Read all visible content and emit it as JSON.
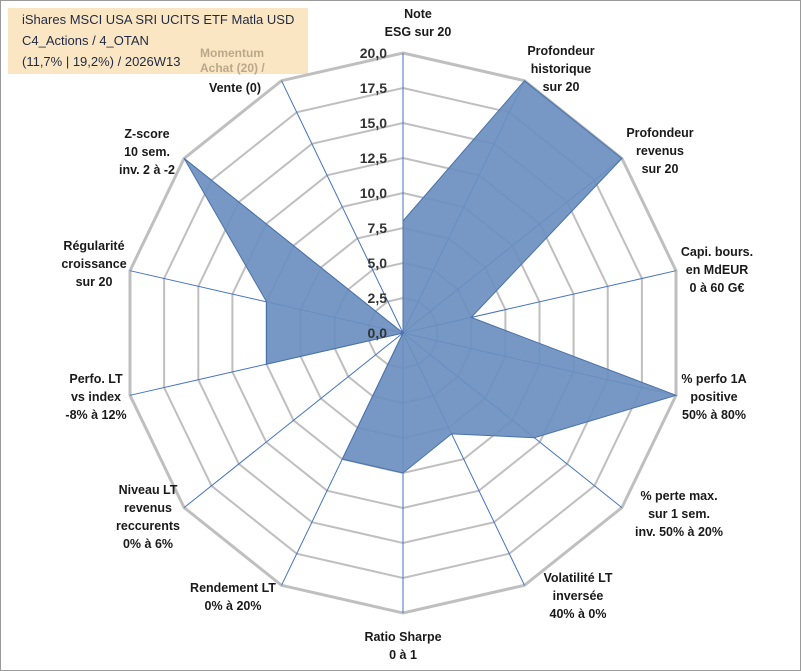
{
  "title": {
    "line1": "iShares MSCI USA SRI UCITS ETF Matla USD",
    "line2": "C4_Actions / 4_OTAN",
    "line3": "(11,7% | 19,2%) / 2026W13",
    "momentum_1": "Momentum",
    "momentum_2": "Achat (20) /",
    "momentum_3": "Vente (0)"
  },
  "chart_data": {
    "type": "radar",
    "rmax": 20,
    "ticks": [
      0,
      2.5,
      5,
      7.5,
      10,
      12.5,
      15,
      17.5,
      20
    ],
    "tick_labels": [
      "0,0",
      "2,5",
      "5,0",
      "7,5",
      "10,0",
      "12,5",
      "15,0",
      "17,5",
      "20,0"
    ],
    "axes": [
      {
        "lines": [
          "Note",
          "ESG sur 20"
        ],
        "value": 8
      },
      {
        "lines": [
          "Profondeur",
          "historique",
          "sur 20"
        ],
        "value": 20
      },
      {
        "lines": [
          "Profondeur",
          "revenus",
          "sur 20"
        ],
        "value": 20
      },
      {
        "lines": [
          "Capi. bours.",
          "en MdEUR",
          "0 à 60 G€"
        ],
        "value": 5
      },
      {
        "lines": [
          "% perfo 1A",
          "positive",
          "50% à 80%"
        ],
        "value": 20
      },
      {
        "lines": [
          "% perte max.",
          "sur 1 sem.",
          "inv. 50% à 20%"
        ],
        "value": 12
      },
      {
        "lines": [
          "Volatilité LT",
          "inversée",
          "40% à 0%"
        ],
        "value": 8
      },
      {
        "lines": [
          "Ratio Sharpe",
          "0 à 1"
        ],
        "value": 10
      },
      {
        "lines": [
          "Rendement LT",
          "0% à 20%"
        ],
        "value": 10
      },
      {
        "lines": [
          "Niveau LT",
          "revenus",
          "reccurents",
          "0% à 6%"
        ],
        "value": 0
      },
      {
        "lines": [
          "Perfo. LT",
          "vs index",
          "-8% à 12%"
        ],
        "value": 10
      },
      {
        "lines": [
          "Régularité",
          "croissance",
          "sur 20"
        ],
        "value": 10
      },
      {
        "lines": [
          "Z-score",
          "10 sem.",
          "inv. 2 à -2"
        ],
        "value": 20
      },
      {
        "lines": [
          "Momentum",
          "Achat (20) /",
          "Vente (0)"
        ],
        "value": 0
      }
    ],
    "colors": {
      "fill": "#6b8fbf",
      "stroke": "#4a72aa",
      "grid": "#bfbfbf",
      "spoke": "#4472c4"
    }
  }
}
